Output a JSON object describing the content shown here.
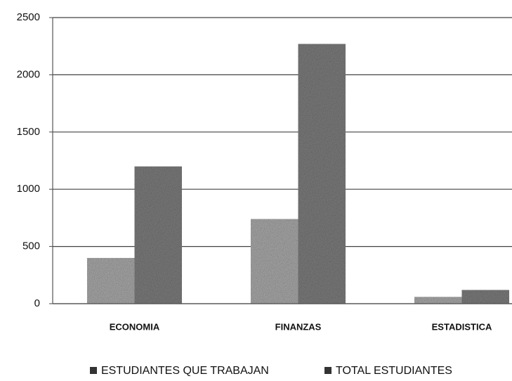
{
  "chart_data": {
    "type": "bar",
    "categories": [
      "ECONOMIA",
      "FINANZAS",
      "ESTADISTICA"
    ],
    "series": [
      {
        "name": "ESTUDIANTES QUE TRABAJAN",
        "color": "#a9a9a9",
        "values": [
          400,
          740,
          60
        ]
      },
      {
        "name": "TOTAL ESTUDIANTES",
        "color": "#7d7d7d",
        "values": [
          1200,
          2270,
          120
        ]
      }
    ],
    "ylim": [
      0,
      2500
    ],
    "yticks": [
      0,
      500,
      1000,
      1500,
      2000,
      2500
    ],
    "grid": true
  }
}
